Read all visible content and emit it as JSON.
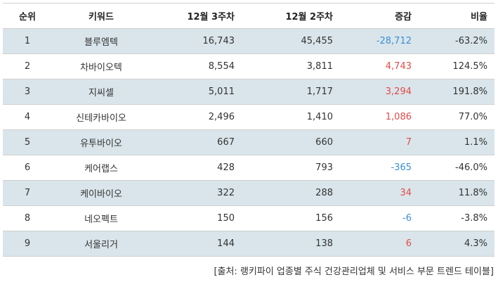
{
  "headers": [
    "순위",
    "키워드",
    "12월 3주차",
    "12월 2주차",
    "증감",
    "비율"
  ],
  "rows": [
    {
      "rank": "1",
      "keyword": "블루엠텍",
      "w3": "16,743",
      "w2": "45,455",
      "change": "-28,712",
      "ratio": "-63.2%",
      "trend": "down"
    },
    {
      "rank": "2",
      "keyword": "차바이오텍",
      "w3": "8,554",
      "w2": "3,811",
      "change": "4,743",
      "ratio": "124.5%",
      "trend": "up"
    },
    {
      "rank": "3",
      "keyword": "지씨셀",
      "w3": "5,011",
      "w2": "1,717",
      "change": "3,294",
      "ratio": "191.8%",
      "trend": "up"
    },
    {
      "rank": "4",
      "keyword": "신테카바이오",
      "w3": "2,496",
      "w2": "1,410",
      "change": "1,086",
      "ratio": "77.0%",
      "trend": "up"
    },
    {
      "rank": "5",
      "keyword": "유투바이오",
      "w3": "667",
      "w2": "660",
      "change": "7",
      "ratio": "1.1%",
      "trend": "up"
    },
    {
      "rank": "6",
      "keyword": "케어랩스",
      "w3": "428",
      "w2": "793",
      "change": "-365",
      "ratio": "-46.0%",
      "trend": "down"
    },
    {
      "rank": "7",
      "keyword": "케이바이오",
      "w3": "322",
      "w2": "288",
      "change": "34",
      "ratio": "11.8%",
      "trend": "up"
    },
    {
      "rank": "8",
      "keyword": "네오펙트",
      "w3": "150",
      "w2": "156",
      "change": "-6",
      "ratio": "-3.8%",
      "trend": "down"
    },
    {
      "rank": "9",
      "keyword": "서울리거",
      "w3": "144",
      "w2": "138",
      "change": "6",
      "ratio": "4.3%",
      "trend": "up"
    }
  ],
  "source": "[출처: 랭키파이 업종별 주식 건강관리업체 및 서비스 부문 트렌드 테이블]",
  "colors": {
    "up": "#e24b4b",
    "down": "#3a8fd6",
    "stripe": "#d9e5ea"
  }
}
